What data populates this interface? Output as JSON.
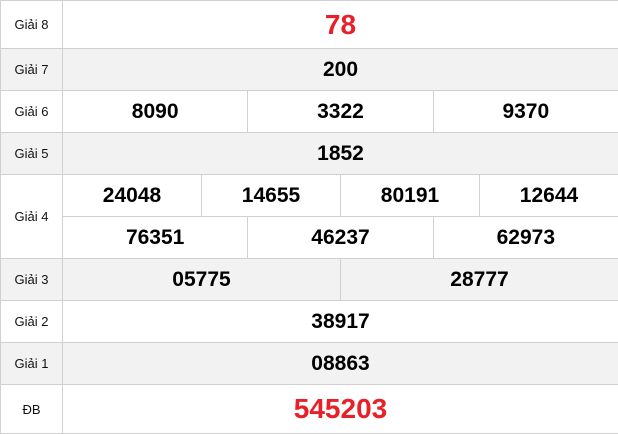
{
  "colors": {
    "special": "#e8202a",
    "alt_row": "#f2f2f2",
    "border": "#d0d0d0"
  },
  "rows": [
    {
      "label": "Giải 8",
      "values": [
        [
          "78"
        ]
      ]
    },
    {
      "label": "Giải 7",
      "values": [
        [
          "200"
        ]
      ]
    },
    {
      "label": "Giải 6",
      "values": [
        [
          "8090",
          "3322",
          "9370"
        ]
      ]
    },
    {
      "label": "Giải 5",
      "values": [
        [
          "1852"
        ]
      ]
    },
    {
      "label": "Giải 4",
      "values": [
        [
          "24048",
          "14655",
          "80191",
          "12644"
        ],
        [
          "76351",
          "46237",
          "62973"
        ]
      ]
    },
    {
      "label": "Giải 3",
      "values": [
        [
          "05775",
          "28777"
        ]
      ]
    },
    {
      "label": "Giải 2",
      "values": [
        [
          "38917"
        ]
      ]
    },
    {
      "label": "Giải 1",
      "values": [
        [
          "08863"
        ]
      ]
    },
    {
      "label": "ĐB",
      "values": [
        [
          "545203"
        ]
      ]
    }
  ]
}
